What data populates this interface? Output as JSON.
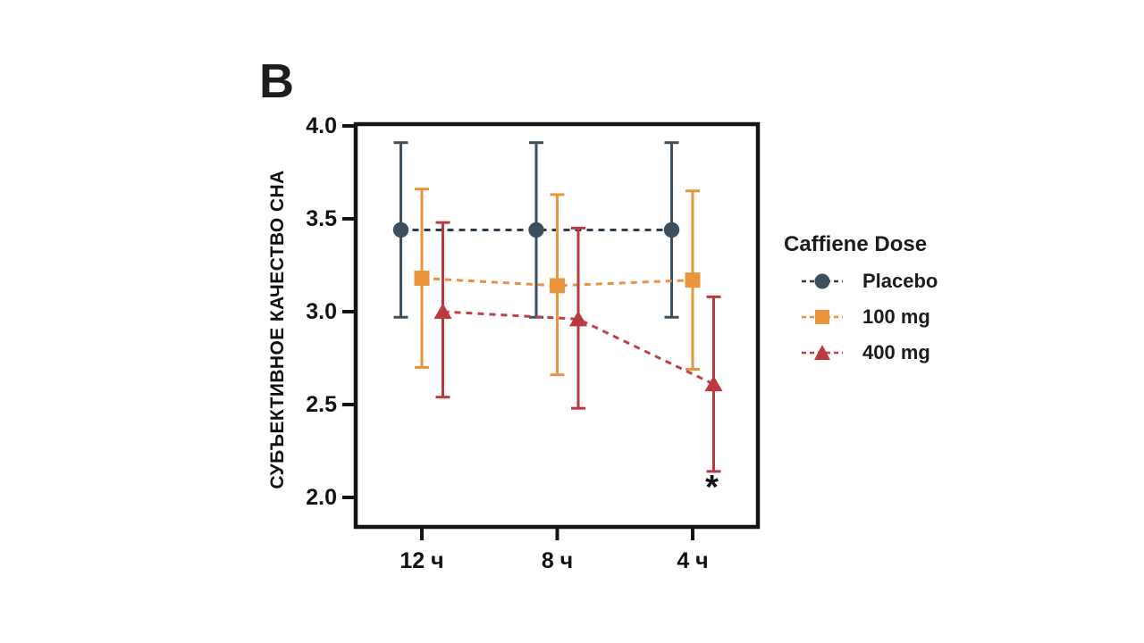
{
  "figure": {
    "panel_label": "B",
    "y_axis": {
      "label": "СУБЪЕКТИВНОЕ КАЧЕСТВО СНА",
      "tick_labels": [
        "4.0",
        "3.5",
        "3.0",
        "2.5",
        "2.0"
      ],
      "min": 2.0,
      "max": 4.0
    },
    "x_axis": {
      "tick_labels": [
        "12 ч",
        "8 ч",
        "4 ч"
      ]
    },
    "legend": {
      "title": "Caffiene Dose",
      "items": [
        {
          "label": "Placebo",
          "marker": "circle",
          "color": "#3d4f5c",
          "line_color": "#2f3e4a"
        },
        {
          "label": "100 mg",
          "marker": "square",
          "color": "#e8953e",
          "line_color": "#e89140"
        },
        {
          "label": "400 mg",
          "marker": "triangle",
          "color": "#bb3a3e",
          "line_color": "#c04146"
        }
      ]
    },
    "axis_color": "#141414",
    "text_color": "#111111"
  },
  "chart_data": {
    "type": "line",
    "title": "",
    "xlabel": "",
    "ylabel": "СУБЪЕКТИВНОЕ КАЧЕСТВО СНА",
    "categories": [
      "12 ч",
      "8 ч",
      "4 ч"
    ],
    "ylim": [
      2.0,
      4.0
    ],
    "yticks": [
      4.0,
      3.5,
      3.0,
      2.5,
      2.0
    ],
    "grid": false,
    "legend_position": "right",
    "line_style": "dashed",
    "series": [
      {
        "name": "Placebo",
        "marker": "circle",
        "color": "#3d4f5c",
        "line_color": "#2f3e4a",
        "values": [
          3.44,
          3.44,
          3.44
        ],
        "error_high": [
          3.91,
          3.91,
          3.91
        ],
        "error_low": [
          2.97,
          2.97,
          2.97
        ]
      },
      {
        "name": "100 mg",
        "marker": "square",
        "color": "#e8953e",
        "line_color": "#e89140",
        "values": [
          3.18,
          3.14,
          3.17
        ],
        "error_high": [
          3.66,
          3.63,
          3.65
        ],
        "error_low": [
          2.7,
          2.66,
          2.69
        ]
      },
      {
        "name": "400 mg",
        "marker": "triangle",
        "color": "#bb3a3e",
        "line_color": "#c04146",
        "values": [
          3.0,
          2.96,
          2.61
        ],
        "error_high": [
          3.48,
          3.45,
          3.08
        ],
        "error_low": [
          2.54,
          2.48,
          2.14
        ]
      }
    ],
    "significance": {
      "label": "*",
      "category_index": 2,
      "series": "400 mg"
    }
  }
}
